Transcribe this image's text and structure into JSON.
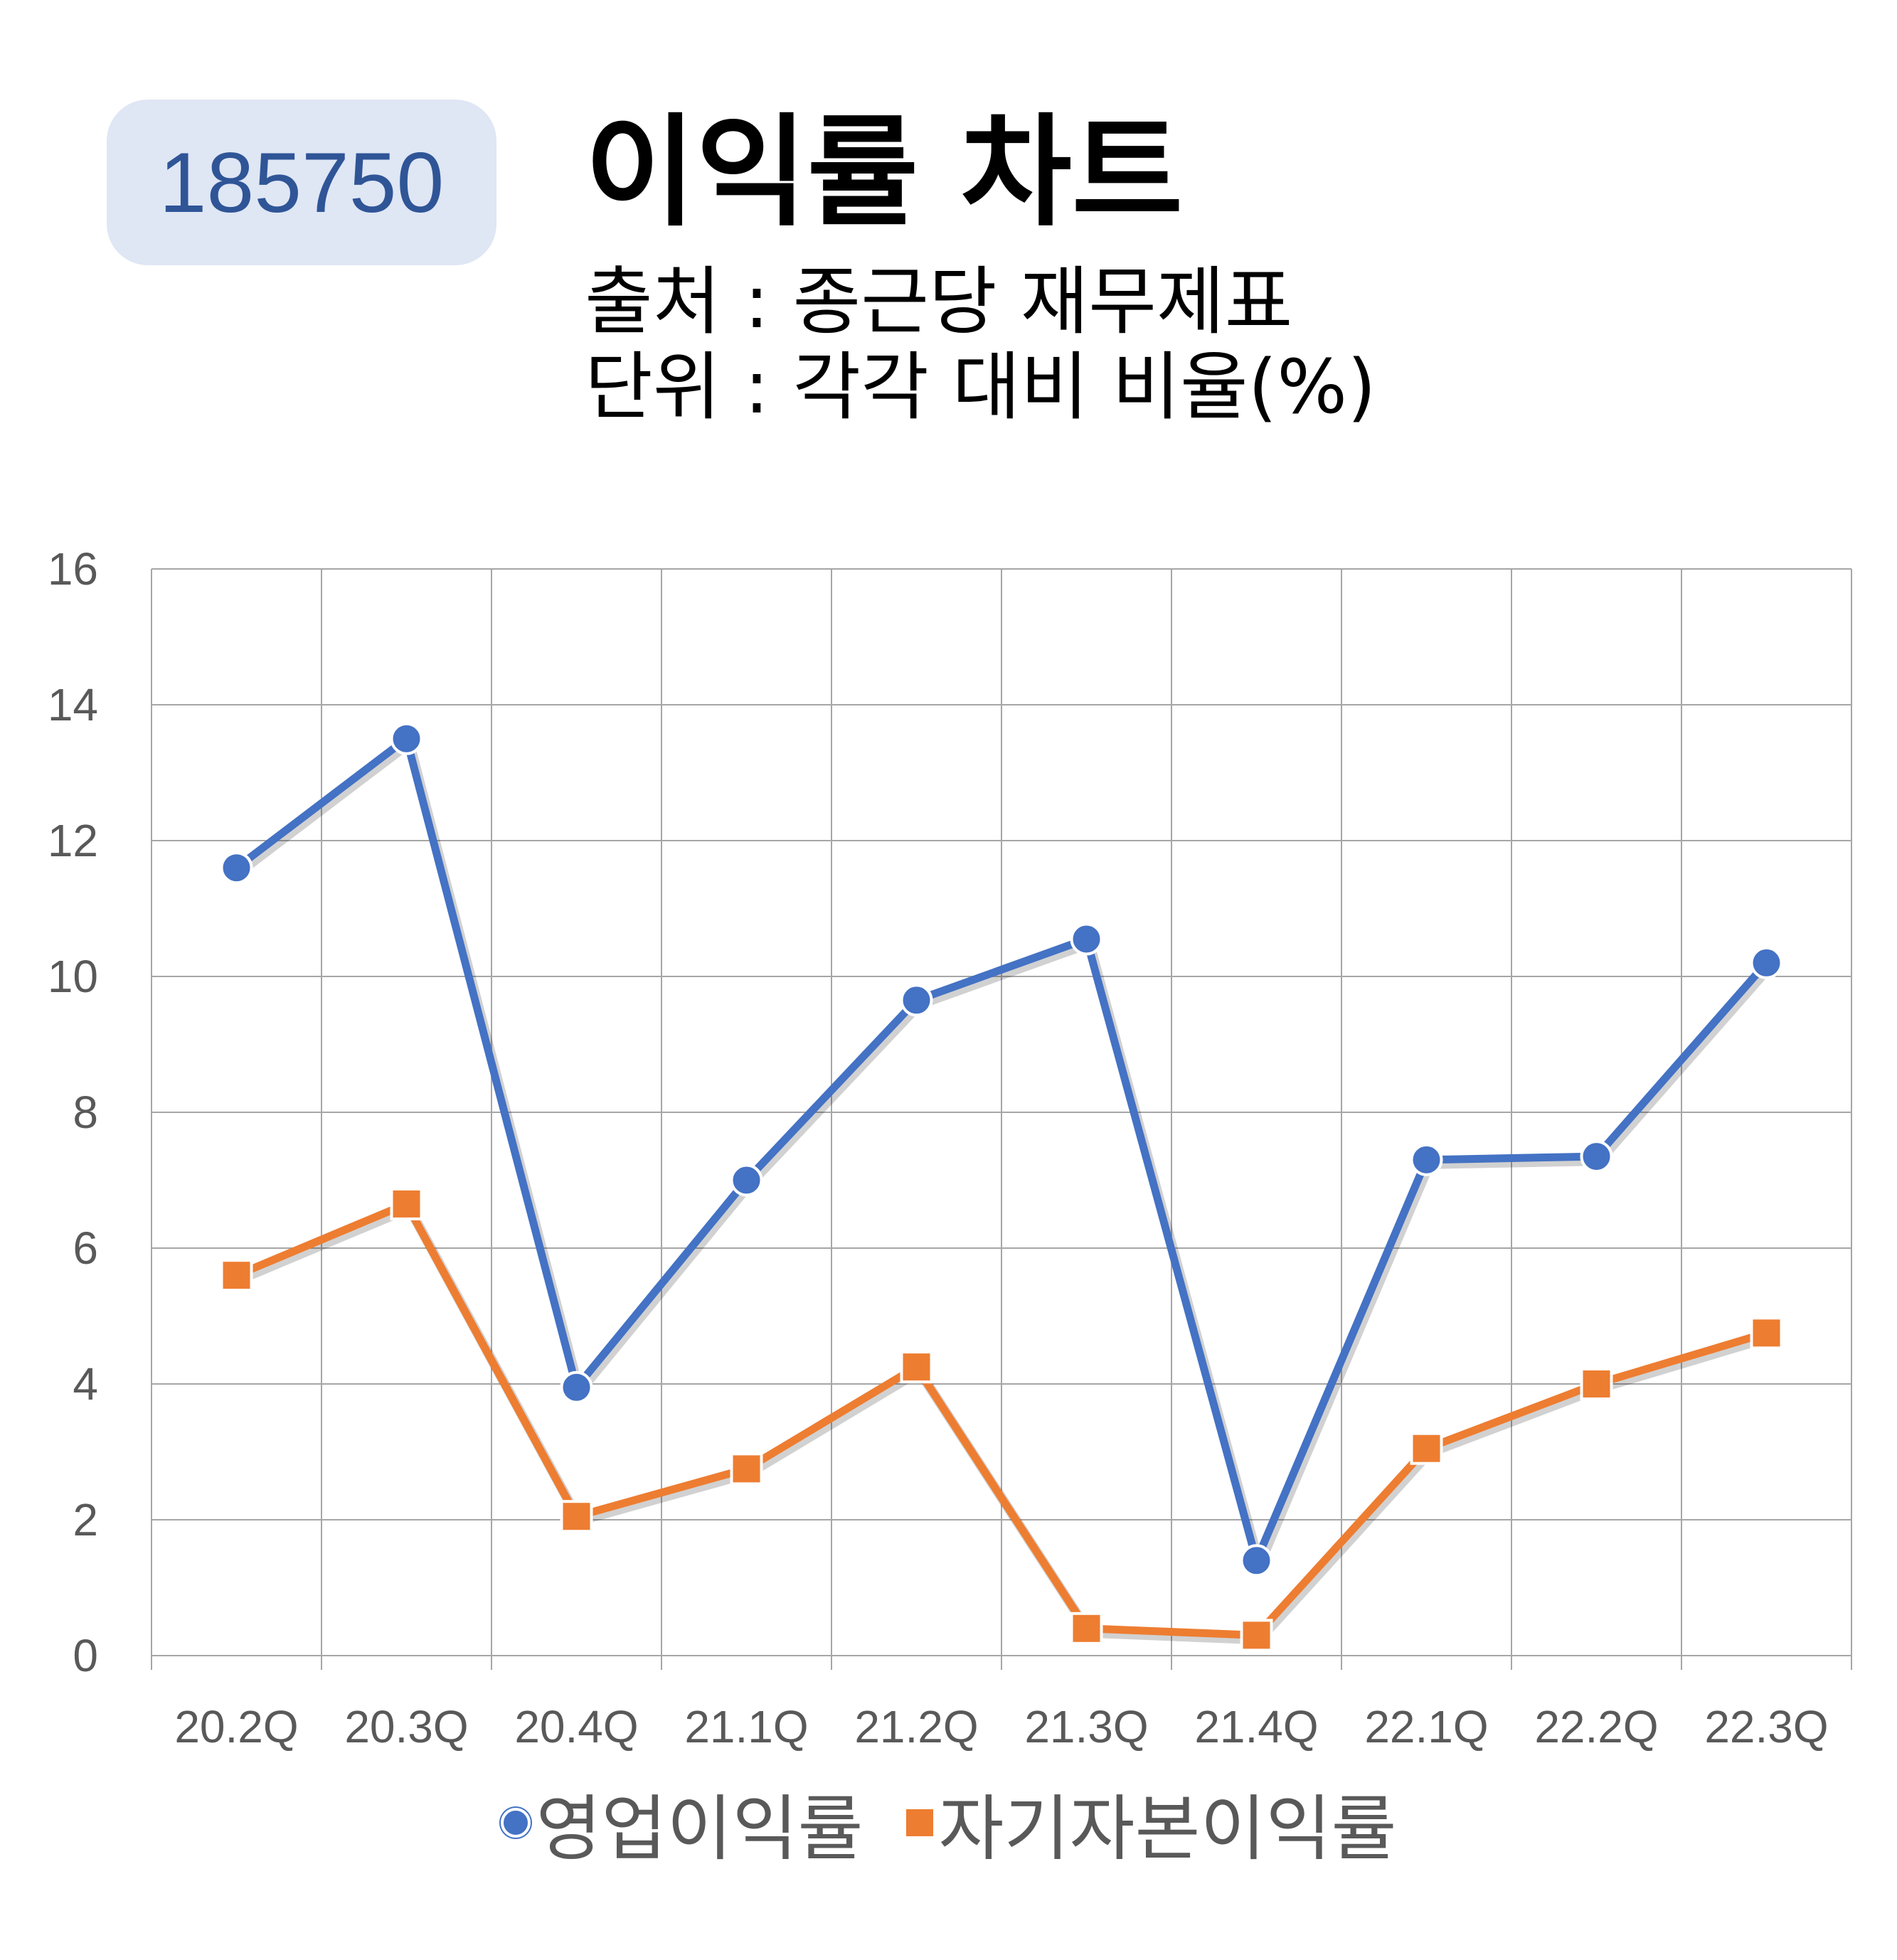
{
  "header": {
    "code": "185750",
    "title": "이익률 차트",
    "source": "출처 : 종근당 재무제표",
    "unit": "단위 : 각각 대비 비율(%)"
  },
  "colors": {
    "operating": "#4472c4",
    "roe": "#ed7d31",
    "badge_bg": "#dfe6f4",
    "badge_text": "#2f5597",
    "grid": "#a6a6a6",
    "axis_text": "#595959"
  },
  "chart_data": {
    "type": "line",
    "title": "",
    "xlabel": "",
    "ylabel": "",
    "categories": [
      "20.2Q",
      "20.3Q",
      "20.4Q",
      "21.1Q",
      "21.2Q",
      "21.3Q",
      "21.4Q",
      "22.1Q",
      "22.2Q",
      "22.3Q"
    ],
    "ylim": [
      0,
      16
    ],
    "yticks": [
      0,
      2,
      4,
      6,
      8,
      10,
      12,
      14,
      16
    ],
    "grid": true,
    "legend_position": "bottom",
    "series": [
      {
        "name": "영업이익률",
        "marker": "circle",
        "color": "#4472c4",
        "values": [
          11.6,
          13.5,
          3.95,
          7.0,
          9.65,
          10.55,
          1.4,
          7.3,
          7.35,
          10.2
        ]
      },
      {
        "name": "자기자본이익률",
        "marker": "square",
        "color": "#ed7d31",
        "values": [
          5.6,
          6.65,
          2.05,
          2.75,
          4.25,
          0.4,
          0.3,
          3.05,
          4.0,
          4.75
        ]
      }
    ]
  }
}
